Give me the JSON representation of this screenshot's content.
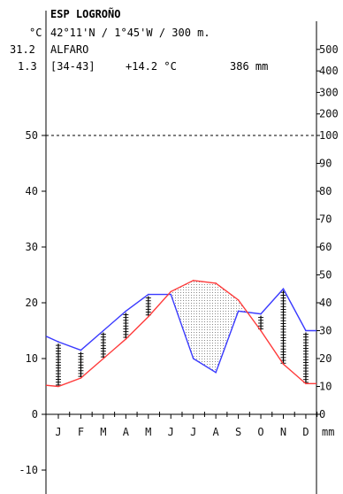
{
  "header": {
    "station_title": "ESP LOGROÑO",
    "coords_line": "42°11'N / 1°45'W / 300 m.",
    "temp_unit": "°C",
    "max_temp": "31.2",
    "station_secondary": "ALFARO",
    "min_temp": "1.3",
    "period": "[34-43]",
    "mean_temp": "+14.2 °C",
    "annual_precip": "386 mm"
  },
  "colors": {
    "temperature": "#ff3b3b",
    "precipitation": "#3a3aff",
    "axis": "#000000",
    "dry_fill": "#c9c9c9",
    "background": "#ffffff"
  },
  "chart_data": {
    "type": "line",
    "categories": [
      "J",
      "F",
      "M",
      "A",
      "M",
      "J",
      "J",
      "A",
      "S",
      "O",
      "N",
      "D"
    ],
    "series": [
      {
        "key": "temperature",
        "values": [
          5.0,
          6.5,
          10.0,
          13.5,
          17.5,
          22.0,
          24.0,
          23.5,
          20.5,
          15.0,
          9.0,
          5.5
        ]
      },
      {
        "key": "precipitation",
        "values": [
          26,
          23,
          30,
          37,
          43,
          43,
          20,
          15,
          37,
          36,
          45,
          30
        ]
      }
    ],
    "left_axis": {
      "unit": "°C",
      "ticks": [
        -10,
        0,
        10,
        20,
        30,
        40,
        50
      ],
      "ylim": [
        -15,
        58
      ]
    },
    "right_axis": {
      "unit": "mm",
      "ticks": [
        0,
        10,
        20,
        30,
        40,
        50,
        60,
        70,
        80,
        90,
        100,
        200,
        300,
        400,
        500
      ],
      "scale_note": "precipitation 2 mm per °C up to 100 mm, compressed scale above 100 mm"
    },
    "reference_line": {
      "left": 50,
      "right": 100,
      "style": "dashed"
    },
    "grid": false,
    "legend": "none"
  }
}
